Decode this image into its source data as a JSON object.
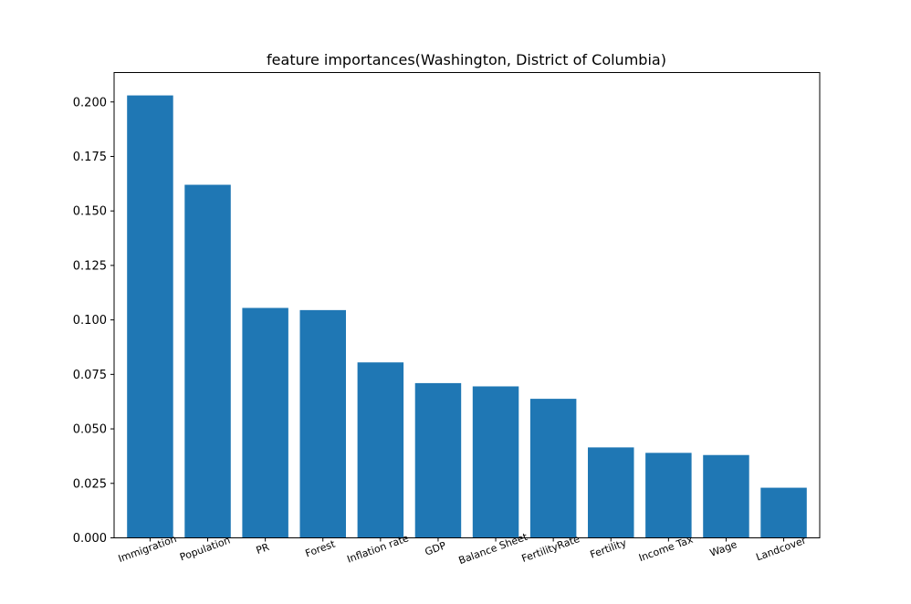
{
  "chart_data": {
    "type": "bar",
    "title": "feature importances(Washington, District of Columbia)",
    "xlabel": "",
    "ylabel": "",
    "categories": [
      "Immigration",
      "Population",
      "PR",
      "Forest",
      "Inflation rate",
      "GDP",
      "Balance Sheet",
      "FertilityRate",
      "Fertility",
      "Income Tax",
      "Wage",
      "Landcover"
    ],
    "values": [
      0.203,
      0.162,
      0.1055,
      0.1045,
      0.0805,
      0.071,
      0.0695,
      0.0638,
      0.0415,
      0.039,
      0.038,
      0.023
    ],
    "ylim": [
      0,
      0.2135
    ],
    "yticks": [
      "0.000",
      "0.025",
      "0.050",
      "0.075",
      "0.100",
      "0.125",
      "0.150",
      "0.175",
      "0.200"
    ],
    "bar_color": "#1f77b4",
    "grid": false,
    "xtick_rotation_deg": -20
  }
}
